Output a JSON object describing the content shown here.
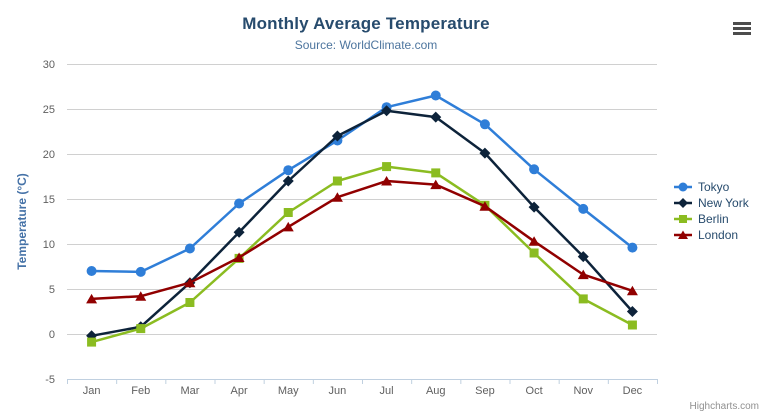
{
  "chart_data": {
    "type": "line",
    "title": "Monthly Average Temperature",
    "subtitle": "Source: WorldClimate.com",
    "xlabel": "",
    "ylabel": "Temperature (°C)",
    "categories": [
      "Jan",
      "Feb",
      "Mar",
      "Apr",
      "May",
      "Jun",
      "Jul",
      "Aug",
      "Sep",
      "Oct",
      "Nov",
      "Dec"
    ],
    "ylim": [
      -5,
      30
    ],
    "ytick_step": 5,
    "ytick_labels": [
      "-5",
      "0",
      "5",
      "10",
      "15",
      "20",
      "25",
      "30"
    ],
    "grid": true,
    "legend_position": "right",
    "series": [
      {
        "name": "Tokyo",
        "color": "#2f7ed8",
        "marker": "circle",
        "values": [
          7.0,
          6.9,
          9.5,
          14.5,
          18.2,
          21.5,
          25.2,
          26.5,
          23.3,
          18.3,
          13.9,
          9.6
        ]
      },
      {
        "name": "New York",
        "color": "#0d233a",
        "marker": "diamond",
        "values": [
          -0.2,
          0.8,
          5.7,
          11.3,
          17.0,
          22.0,
          24.8,
          24.1,
          20.1,
          14.1,
          8.6,
          2.5
        ]
      },
      {
        "name": "Berlin",
        "color": "#8bbc21",
        "marker": "square",
        "values": [
          -0.9,
          0.6,
          3.5,
          8.4,
          13.5,
          17.0,
          18.6,
          17.9,
          14.3,
          9.0,
          3.9,
          1.0
        ]
      },
      {
        "name": "London",
        "color": "#910000",
        "marker": "triangle",
        "values": [
          3.9,
          4.2,
          5.7,
          8.5,
          11.9,
          15.2,
          17.0,
          16.6,
          14.2,
          10.3,
          6.6,
          4.8
        ]
      }
    ],
    "credits": "Highcharts.com",
    "colors": {
      "title": "#274b6d",
      "subtitle": "#4d759e",
      "axis_label": "#606060",
      "axis_line": "#c0d0e0",
      "grid_line": "#d0d0d0",
      "y_axis_title": "#4572a7",
      "legend_text": "#274b6d",
      "credits_text": "#909090"
    }
  }
}
